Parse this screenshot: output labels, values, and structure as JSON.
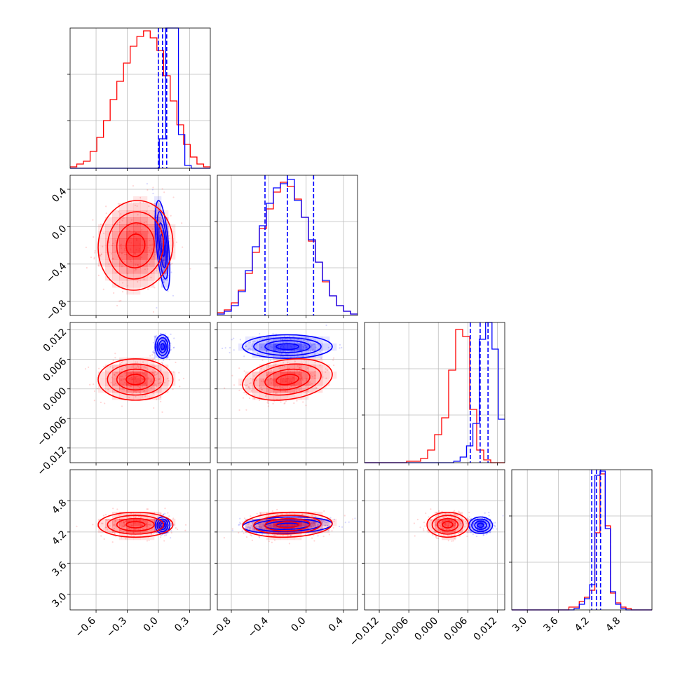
{
  "chart_data": {
    "type": "scatter",
    "subtype": "corner-plot",
    "grid": true,
    "colors": {
      "red": "#ff0000",
      "blue": "#0000ff"
    },
    "parameters": [
      {
        "range": [
          -0.85,
          0.5
        ],
        "ticks": [
          "−0.6",
          "−0.3",
          "0.0",
          "0.3"
        ],
        "tick_values": [
          -0.6,
          -0.3,
          0.0,
          0.3
        ]
      },
      {
        "range": [
          -0.95,
          0.55
        ],
        "ticks": [
          "−0.8",
          "−0.4",
          "0.0",
          "0.4"
        ],
        "tick_values": [
          -0.8,
          -0.4,
          0.0,
          0.4
        ]
      },
      {
        "range": [
          -0.015,
          0.0135
        ],
        "ticks": [
          "−0.012",
          "−0.006",
          "0.000",
          "0.006",
          "0.012"
        ],
        "tick_values": [
          -0.012,
          -0.006,
          0.0,
          0.006,
          0.012
        ]
      },
      {
        "range": [
          2.7,
          5.4
        ],
        "ticks": [
          "3.0",
          "3.6",
          "4.2",
          "4.8"
        ],
        "tick_values": [
          3.0,
          3.6,
          4.2,
          4.8
        ]
      }
    ],
    "series": [
      {
        "color": "#ff0000",
        "means": [
          -0.22,
          -0.2,
          0.0019,
          4.34
        ],
        "stds": [
          0.18,
          0.24,
          0.0021,
          0.12
        ],
        "hist": [
          [
            0.01,
            0.03,
            0.05,
            0.12,
            0.22,
            0.34,
            0.49,
            0.62,
            0.75,
            0.87,
            0.94,
            0.98,
            0.93,
            0.84,
            0.66,
            0.48,
            0.31,
            0.17,
            0.08,
            0.03,
            0.01
          ],
          [
            0.02,
            0.04,
            0.09,
            0.18,
            0.3,
            0.45,
            0.62,
            0.76,
            0.88,
            0.95,
            0.92,
            0.83,
            0.7,
            0.53,
            0.38,
            0.24,
            0.14,
            0.07,
            0.03,
            0.01
          ],
          [
            0.0,
            0.0,
            0.0,
            0.0,
            0.0,
            0.0,
            0.01,
            0.01,
            0.03,
            0.09,
            0.2,
            0.32,
            0.66,
            0.95,
            0.9,
            0.38,
            0.09,
            0.02,
            0.0,
            0.0
          ],
          [
            0.0,
            0.0,
            0.0,
            0.0,
            0.0,
            0.0,
            0.0,
            0.0,
            0.0,
            0.0,
            0.0,
            0.02,
            0.02,
            0.06,
            0.09,
            0.14,
            0.55,
            0.97,
            0.6,
            0.12,
            0.05,
            0.02,
            0.01,
            0.0,
            0.0,
            0.0,
            0.0
          ]
        ]
      },
      {
        "color": "#0000ff",
        "means": [
          0.04,
          -0.2,
          0.0086,
          4.33
        ],
        "stds": [
          0.035,
          0.24,
          0.0012,
          0.08
        ],
        "quantiles": [
          [
            0.0,
            0.04,
            0.08
          ],
          [
            -0.44,
            -0.2,
            0.08
          ],
          [
            0.0065,
            0.0085,
            0.0101
          ],
          [
            4.24,
            4.33,
            4.41
          ]
        ],
        "hist": [
          [
            0.0,
            0.0,
            0.0,
            0.0,
            0.0,
            0.0,
            0.0,
            0.0,
            0.0,
            0.0,
            0.0,
            0.0,
            0.0,
            0.0,
            0.21,
            1.0,
            1.0,
            0.24,
            0.02,
            0.0,
            0.0,
            0.0
          ],
          [
            0.01,
            0.03,
            0.07,
            0.17,
            0.32,
            0.49,
            0.64,
            0.8,
            0.91,
            0.94,
            0.97,
            0.82,
            0.7,
            0.54,
            0.38,
            0.25,
            0.14,
            0.07,
            0.03,
            0.01
          ],
          [
            0.0,
            0.0,
            0.0,
            0.0,
            0.0,
            0.0,
            0.0,
            0.0,
            0.0,
            0.0,
            0.0,
            0.0,
            0.0,
            0.0,
            0.01,
            0.04,
            0.12,
            0.28,
            0.88,
            1.0,
            0.81,
            0.31
          ],
          [
            0.0,
            0.0,
            0.0,
            0.0,
            0.0,
            0.0,
            0.0,
            0.0,
            0.0,
            0.0,
            0.0,
            0.0,
            0.01,
            0.04,
            0.08,
            0.18,
            0.96,
            0.99,
            0.58,
            0.13,
            0.04,
            0.01,
            0.0,
            0.0,
            0.0,
            0.0,
            0.0
          ]
        ]
      }
    ]
  }
}
